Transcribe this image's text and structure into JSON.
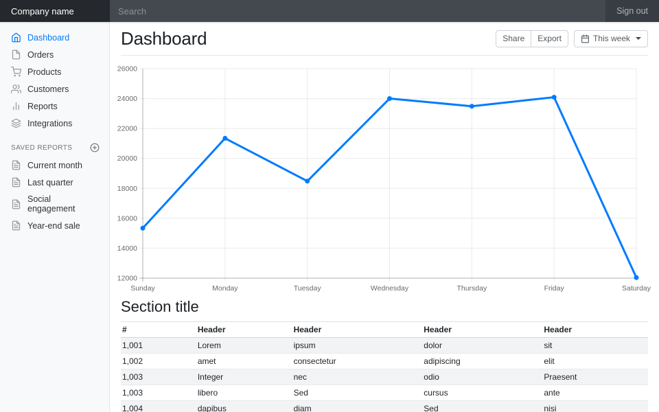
{
  "colors": {
    "accent": "#007bff",
    "navbar_bg": "#343a40",
    "brand_bg": "#25282c",
    "chart_line": "#007bff",
    "grid_line": "rgba(0,0,0,0.08)",
    "axis_line": "rgba(0,0,0,0.25)",
    "tick_label": "#66696c"
  },
  "navbar": {
    "brand": "Company name",
    "search_placeholder": "Search",
    "sign_out": "Sign out"
  },
  "sidebar": {
    "items": [
      {
        "label": "Dashboard",
        "icon": "home",
        "active": true
      },
      {
        "label": "Orders",
        "icon": "file",
        "active": false
      },
      {
        "label": "Products",
        "icon": "shopping-cart",
        "active": false
      },
      {
        "label": "Customers",
        "icon": "users",
        "active": false
      },
      {
        "label": "Reports",
        "icon": "bar-chart",
        "active": false
      },
      {
        "label": "Integrations",
        "icon": "layers",
        "active": false
      }
    ],
    "saved_reports": {
      "heading": "Saved reports",
      "add_icon": "plus-circle",
      "items": [
        {
          "label": "Current month",
          "icon": "file-text"
        },
        {
          "label": "Last quarter",
          "icon": "file-text"
        },
        {
          "label": "Social engagement",
          "icon": "file-text"
        },
        {
          "label": "Year-end sale",
          "icon": "file-text"
        }
      ]
    }
  },
  "page_header": {
    "title": "Dashboard",
    "actions": [
      "Share",
      "Export"
    ],
    "period_button": {
      "label": "This week",
      "icon": "calendar"
    }
  },
  "chart_data": {
    "type": "line",
    "title": "",
    "categories": [
      "Sunday",
      "Monday",
      "Tuesday",
      "Wednesday",
      "Thursday",
      "Friday",
      "Saturday"
    ],
    "values": [
      15339,
      21345,
      18483,
      24003,
      23489,
      24092,
      12034
    ],
    "ylim": [
      12000,
      26000
    ],
    "ytick_step": 2000,
    "xlabel": "",
    "ylabel": "",
    "grid": true,
    "legend": false,
    "line_color": "#007bff",
    "point_color": "#007bff"
  },
  "section": {
    "title": "Section title",
    "table": {
      "headers": [
        "#",
        "Header",
        "Header",
        "Header",
        "Header"
      ],
      "rows": [
        [
          "1,001",
          "Lorem",
          "ipsum",
          "dolor",
          "sit"
        ],
        [
          "1,002",
          "amet",
          "consectetur",
          "adipiscing",
          "elit"
        ],
        [
          "1,003",
          "Integer",
          "nec",
          "odio",
          "Praesent"
        ],
        [
          "1,003",
          "libero",
          "Sed",
          "cursus",
          "ante"
        ],
        [
          "1,004",
          "dapibus",
          "diam",
          "Sed",
          "nisi"
        ]
      ]
    }
  }
}
